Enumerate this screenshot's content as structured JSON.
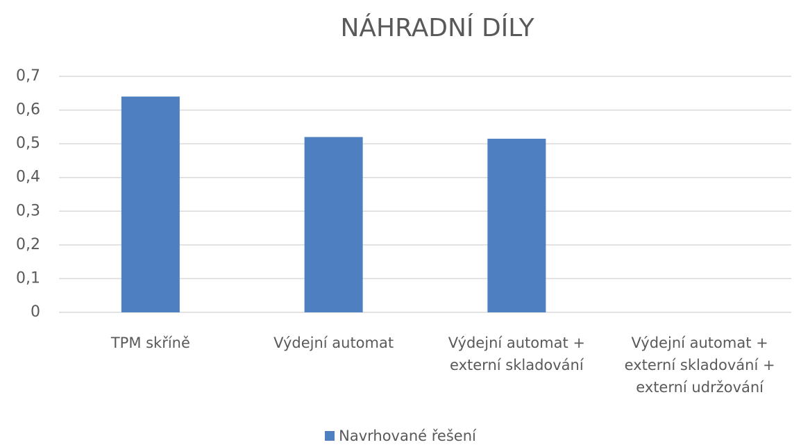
{
  "chart_data": {
    "type": "bar",
    "title": "NÁHRADNÍ DÍLY",
    "categories": [
      "TPM skříně",
      "Výdejní automat",
      "Výdejní automat + externí skladování",
      "Výdejní automat + externí skladování + externí udržování"
    ],
    "series": [
      {
        "name": "Navrhované řešení",
        "color": "#4e7fc0",
        "values": [
          0.64,
          0.52,
          0.515,
          0
        ]
      }
    ],
    "ylim": [
      0,
      0.7
    ],
    "yticks": [
      0,
      {
        "value": 0.1,
        "label": "0,1"
      },
      {
        "value": 0.2,
        "label": "0,2"
      },
      {
        "value": 0.3,
        "label": "0,3"
      },
      {
        "value": 0.4,
        "label": "0,4"
      },
      {
        "value": 0.5,
        "label": "0,5"
      },
      {
        "value": 0.6,
        "label": "0,6"
      },
      {
        "value": 0.7,
        "label": "0,7"
      }
    ],
    "grid": true,
    "legend": "bottom"
  }
}
